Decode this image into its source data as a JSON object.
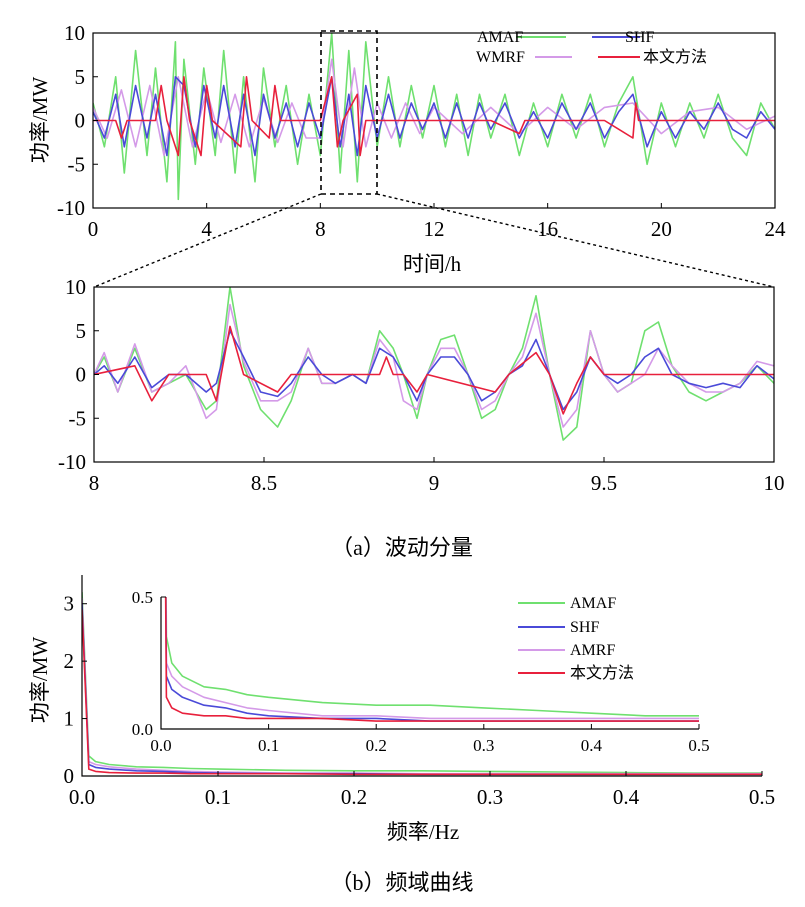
{
  "colors": {
    "AMAF": "#6fe06f",
    "SHF": "#4a4ad8",
    "WMRF": "#d49ae8",
    "AMRF": "#d49ae8",
    "method": "#e8203c"
  },
  "chart_data": [
    {
      "id": "a_full",
      "type": "line",
      "xlabel": "时间/h",
      "ylabel": "功率/MW",
      "xlim": [
        0,
        24
      ],
      "ylim": [
        -10,
        10
      ],
      "xticks": [
        0,
        4,
        8,
        12,
        16,
        20,
        24
      ],
      "yticks": [
        -10,
        -5,
        0,
        5,
        10
      ],
      "legend": "top-right",
      "series": [
        {
          "name": "AMAF",
          "key": "AMAF",
          "x": [
            0,
            0.4,
            0.8,
            1.1,
            1.5,
            1.9,
            2.2,
            2.6,
            2.9,
            3.0,
            3.2,
            3.6,
            3.9,
            4.3,
            4.6,
            5.0,
            5.3,
            5.7,
            6.0,
            6.4,
            6.8,
            7.2,
            7.6,
            8.0,
            8.4,
            8.7,
            9.0,
            9.3,
            9.6,
            10.0,
            10.4,
            10.8,
            11.2,
            11.6,
            12.0,
            12.4,
            12.8,
            13.2,
            13.6,
            14.0,
            14.5,
            15.0,
            15.5,
            16.0,
            16.5,
            17.0,
            17.5,
            18.0,
            18.5,
            19.0,
            19.5,
            20.0,
            20.5,
            21.0,
            21.5,
            22.0,
            22.5,
            23.0,
            23.5,
            24.0
          ],
          "y": [
            2,
            -3,
            5,
            -6,
            8,
            -4,
            6,
            -7,
            9,
            -9,
            7,
            -5,
            6,
            -4,
            8,
            -6,
            5,
            -7,
            6,
            -3,
            4,
            -5,
            3,
            -4,
            10,
            -6,
            8,
            -7,
            9,
            -3,
            5,
            -3,
            4,
            -2,
            4,
            -3,
            3,
            -4,
            3,
            -2,
            3,
            -4,
            2,
            -3,
            3,
            -2,
            3,
            -3,
            2,
            5,
            -5,
            2,
            -3,
            2,
            -2,
            3,
            -2,
            -4,
            2,
            -1
          ]
        },
        {
          "name": "SHF",
          "key": "SHF",
          "x": [
            0,
            0.4,
            0.8,
            1.1,
            1.5,
            1.9,
            2.2,
            2.6,
            2.9,
            3.2,
            3.6,
            3.9,
            4.3,
            4.6,
            5.0,
            5.3,
            5.7,
            6.0,
            6.4,
            6.8,
            7.2,
            7.6,
            8.0,
            8.4,
            8.7,
            9.0,
            9.3,
            9.6,
            10.0,
            10.4,
            10.8,
            11.2,
            11.6,
            12.0,
            12.4,
            12.8,
            13.2,
            13.6,
            14.0,
            14.5,
            15.0,
            15.5,
            16.0,
            16.5,
            17.0,
            17.5,
            18.0,
            18.5,
            19.0,
            19.5,
            20.0,
            20.5,
            21.0,
            21.5,
            22.0,
            22.5,
            23.0,
            23.5,
            24.0
          ],
          "y": [
            1,
            -2,
            3,
            -3,
            4,
            -2,
            3,
            -4,
            5,
            4,
            -3,
            4,
            -2,
            4,
            -3,
            3,
            -4,
            3,
            -2,
            2,
            -3,
            2,
            -2,
            5,
            -3,
            3,
            -4,
            4,
            -2,
            3,
            -2,
            2,
            -1,
            2,
            -2,
            2,
            -2,
            2,
            -1,
            2,
            -2,
            1,
            -2,
            2,
            -1,
            2,
            -2,
            1,
            3,
            -3,
            1,
            -2,
            1,
            -1,
            2,
            -1,
            -2,
            1,
            -1
          ]
        },
        {
          "name": "WMRF",
          "key": "WMRF",
          "x": [
            0,
            0.5,
            1.0,
            1.5,
            2.0,
            2.5,
            3.0,
            3.5,
            4.0,
            4.5,
            5.0,
            5.5,
            6.0,
            6.5,
            7.0,
            7.5,
            8.0,
            8.4,
            8.8,
            9.2,
            9.6,
            10.0,
            10.5,
            11.0,
            11.5,
            12.0,
            13.0,
            14.0,
            15.0,
            16.0,
            17.0,
            18.0,
            19.0,
            20.0,
            21.0,
            22.0,
            23.0,
            24.0
          ],
          "y": [
            1.5,
            -2,
            3.5,
            -3,
            4,
            -4,
            5,
            -3,
            3.5,
            -2.5,
            3,
            -3,
            2.5,
            -2.5,
            2,
            -2,
            -2,
            7,
            -3,
            6,
            -3,
            2,
            -2,
            2,
            -1.5,
            1.5,
            -1.5,
            1.5,
            -1.5,
            1.5,
            -1,
            1.5,
            2,
            -1.5,
            1,
            1.5,
            -1,
            0.5
          ]
        },
        {
          "name": "本文方法",
          "key": "method",
          "x": [
            0,
            0.8,
            1.0,
            1.2,
            2.2,
            2.4,
            2.6,
            3.0,
            3.2,
            3.4,
            3.8,
            4.0,
            4.2,
            5.2,
            5.4,
            5.6,
            6.2,
            6.4,
            6.6,
            8.0,
            8.4,
            8.6,
            8.8,
            9.3,
            9.4,
            9.6,
            10.0,
            12.0,
            14.0,
            15.0,
            15.2,
            15.4,
            16.0,
            18.0,
            19.0,
            19.1,
            19.2,
            20.0,
            24.0
          ],
          "y": [
            0,
            0,
            -2,
            0,
            0,
            4,
            0,
            -4,
            5,
            0,
            -4,
            4,
            0,
            -3,
            5,
            0,
            -2,
            4,
            0,
            0,
            5,
            -3,
            0,
            3,
            -4,
            0,
            0,
            0,
            0,
            -1.5,
            0,
            0,
            0,
            0,
            -2,
            2,
            0,
            0,
            0
          ]
        }
      ]
    },
    {
      "id": "a_zoom",
      "type": "line",
      "xlim": [
        8,
        10
      ],
      "ylim": [
        -10,
        10
      ],
      "xticks": [
        8,
        8.5,
        9,
        9.5,
        10
      ],
      "xticklabels": [
        "8",
        "8.5",
        "9",
        "9.5",
        "10"
      ],
      "yticks": [
        -10,
        -5,
        0,
        5,
        10
      ],
      "series": [
        {
          "name": "AMAF",
          "key": "AMAF",
          "x": [
            8.0,
            8.03,
            8.07,
            8.12,
            8.17,
            8.22,
            8.27,
            8.33,
            8.36,
            8.4,
            8.44,
            8.49,
            8.54,
            8.58,
            8.63,
            8.67,
            8.71,
            8.76,
            8.8,
            8.84,
            8.88,
            8.91,
            8.95,
            8.98,
            9.02,
            9.06,
            9.1,
            9.14,
            9.18,
            9.22,
            9.26,
            9.3,
            9.34,
            9.38,
            9.42,
            9.46,
            9.5,
            9.54,
            9.58,
            9.62,
            9.66,
            9.7,
            9.75,
            9.8,
            9.85,
            9.9,
            9.95,
            10.0
          ],
          "y": [
            0,
            2,
            -2,
            3,
            -2,
            -1,
            0,
            -4,
            -3,
            10,
            1,
            -4,
            -6,
            -3,
            3,
            -1,
            -1,
            0,
            -1,
            5,
            3,
            0,
            -5,
            0,
            4,
            4.5,
            0,
            -5,
            -4,
            0,
            3,
            9,
            0,
            -7.5,
            -6,
            5,
            0,
            -2,
            -1,
            5,
            6,
            1,
            -2,
            -3,
            -2,
            -1,
            1,
            -1
          ]
        },
        {
          "name": "SHF",
          "key": "SHF",
          "x": [
            8.0,
            8.03,
            8.07,
            8.12,
            8.17,
            8.22,
            8.27,
            8.33,
            8.36,
            8.4,
            8.44,
            8.49,
            8.54,
            8.58,
            8.63,
            8.67,
            8.71,
            8.76,
            8.8,
            8.84,
            8.88,
            8.91,
            8.95,
            8.98,
            9.02,
            9.06,
            9.1,
            9.14,
            9.18,
            9.22,
            9.26,
            9.3,
            9.34,
            9.38,
            9.42,
            9.46,
            9.5,
            9.54,
            9.58,
            9.62,
            9.66,
            9.7,
            9.75,
            9.8,
            9.85,
            9.9,
            9.95,
            10.0
          ],
          "y": [
            0,
            1,
            -1,
            2,
            -1.5,
            0,
            0,
            -2,
            -1,
            5,
            2,
            -2,
            -2.5,
            -1,
            2,
            0,
            -1,
            0,
            -1,
            3,
            2,
            0,
            -3,
            0,
            2,
            2,
            0,
            -3,
            -2,
            0,
            1,
            4,
            0,
            -4,
            -2,
            2,
            0,
            -1,
            0,
            2,
            3,
            0,
            -1,
            -1.5,
            -1,
            -1.5,
            1,
            -0.5
          ]
        },
        {
          "name": "WMRF",
          "key": "WMRF",
          "x": [
            8.0,
            8.03,
            8.07,
            8.12,
            8.17,
            8.22,
            8.27,
            8.33,
            8.36,
            8.4,
            8.44,
            8.49,
            8.54,
            8.58,
            8.63,
            8.67,
            8.71,
            8.76,
            8.8,
            8.84,
            8.88,
            8.91,
            8.95,
            8.98,
            9.02,
            9.06,
            9.1,
            9.14,
            9.18,
            9.22,
            9.26,
            9.3,
            9.34,
            9.38,
            9.42,
            9.46,
            9.5,
            9.54,
            9.58,
            9.62,
            9.66,
            9.7,
            9.75,
            9.8,
            9.85,
            9.9,
            9.95,
            10.0
          ],
          "y": [
            0,
            2.5,
            -2,
            3.5,
            -2,
            -1,
            1,
            -5,
            -4,
            8,
            1.5,
            -3,
            -3,
            -2,
            3,
            -1,
            -1,
            0,
            -1,
            4,
            2,
            -3,
            -4,
            0,
            3,
            3,
            0,
            -4,
            -3,
            0,
            2,
            7,
            0,
            -6,
            -4,
            5,
            0,
            -2,
            -1,
            0,
            3,
            1,
            -1,
            -2,
            -2,
            -1,
            1.5,
            1
          ]
        },
        {
          "name": "本文方法",
          "key": "method",
          "x": [
            8.0,
            8.12,
            8.17,
            8.22,
            8.33,
            8.36,
            8.4,
            8.44,
            8.54,
            8.58,
            8.84,
            8.86,
            8.88,
            8.91,
            8.95,
            8.98,
            9.18,
            9.22,
            9.3,
            9.34,
            9.38,
            9.42,
            9.46,
            9.5,
            10.0
          ],
          "y": [
            0,
            1,
            -3,
            0,
            0,
            -3,
            5.5,
            0,
            -2,
            0,
            0,
            2,
            0,
            0,
            -2,
            0,
            -2,
            0,
            2.5,
            0,
            -4.5,
            -1,
            2,
            0,
            0
          ]
        }
      ]
    },
    {
      "id": "b_full",
      "type": "line",
      "xlabel": "频率/Hz",
      "ylabel": "功率/MW",
      "xlim": [
        0,
        0.5
      ],
      "ylim": [
        0,
        3.5
      ],
      "xticks": [
        0,
        0.1,
        0.2,
        0.3,
        0.4,
        0.5
      ],
      "xticklabels": [
        "0.0",
        "0.1",
        "0.2",
        "0.3",
        "0.4",
        "0.5"
      ],
      "yticks": [
        0,
        1,
        2,
        3
      ],
      "inset": {
        "xlim": [
          0,
          0.5
        ],
        "ylim": [
          0,
          0.5
        ],
        "xticks": [
          0,
          0.1,
          0.2,
          0.3,
          0.4,
          0.5
        ],
        "xticklabels": [
          "0.0",
          "0.1",
          "0.2",
          "0.3",
          "0.4",
          "0.5"
        ],
        "yticks": [
          0,
          0.5
        ],
        "yticklabels": [
          "0.0",
          "0.5"
        ],
        "legend": "top-right"
      },
      "series": [
        {
          "name": "AMAF",
          "key": "AMAF",
          "x": [
            0,
            0.005,
            0.01,
            0.02,
            0.04,
            0.06,
            0.08,
            0.1,
            0.15,
            0.2,
            0.25,
            0.3,
            0.35,
            0.4,
            0.45,
            0.5
          ],
          "y": [
            3.2,
            0.35,
            0.25,
            0.2,
            0.16,
            0.15,
            0.13,
            0.12,
            0.1,
            0.09,
            0.09,
            0.08,
            0.07,
            0.06,
            0.05,
            0.05
          ]
        },
        {
          "name": "SHF",
          "key": "SHF",
          "x": [
            0,
            0.005,
            0.01,
            0.02,
            0.04,
            0.06,
            0.08,
            0.1,
            0.15,
            0.2,
            0.25,
            0.3,
            0.35,
            0.4,
            0.45,
            0.5
          ],
          "y": [
            3.0,
            0.2,
            0.15,
            0.12,
            0.09,
            0.08,
            0.06,
            0.05,
            0.04,
            0.04,
            0.03,
            0.03,
            0.03,
            0.03,
            0.03,
            0.03
          ]
        },
        {
          "name": "AMRF",
          "key": "AMRF",
          "x": [
            0,
            0.005,
            0.01,
            0.02,
            0.04,
            0.06,
            0.08,
            0.1,
            0.15,
            0.2,
            0.25,
            0.3,
            0.35,
            0.4,
            0.45,
            0.5
          ],
          "y": [
            3.1,
            0.25,
            0.2,
            0.16,
            0.12,
            0.1,
            0.08,
            0.07,
            0.05,
            0.05,
            0.04,
            0.04,
            0.04,
            0.04,
            0.04,
            0.04
          ]
        },
        {
          "name": "本文方法",
          "key": "method",
          "x": [
            0,
            0.005,
            0.01,
            0.02,
            0.04,
            0.06,
            0.08,
            0.1,
            0.15,
            0.2,
            0.25,
            0.3,
            0.35,
            0.4,
            0.45,
            0.5
          ],
          "y": [
            2.9,
            0.12,
            0.08,
            0.06,
            0.05,
            0.05,
            0.04,
            0.04,
            0.04,
            0.03,
            0.03,
            0.03,
            0.03,
            0.03,
            0.03,
            0.03
          ]
        }
      ]
    }
  ],
  "captions": {
    "a": "（a）波动分量",
    "b": "（b）频域曲线"
  }
}
